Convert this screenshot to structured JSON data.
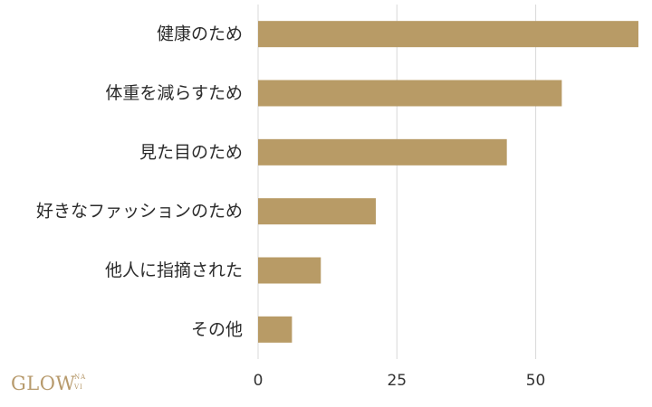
{
  "chart_data": {
    "type": "bar",
    "orientation": "horizontal",
    "categories": [
      "健康のため",
      "体重を減らすため",
      "見た目のため",
      "好きなファッションのため",
      "他人に指摘された",
      "その他"
    ],
    "values": [
      68.5,
      54.7,
      44.8,
      21.2,
      11.3,
      6.1
    ],
    "x_ticks": [
      "0",
      "25",
      "50"
    ],
    "xlim": [
      0,
      68.5
    ],
    "grid": true,
    "colors": {
      "bar": "#b89b66",
      "grid": "#d9d9d9"
    }
  },
  "logo": {
    "text": "GLOW",
    "sub_top": "NA",
    "sub_bottom": "VI"
  }
}
